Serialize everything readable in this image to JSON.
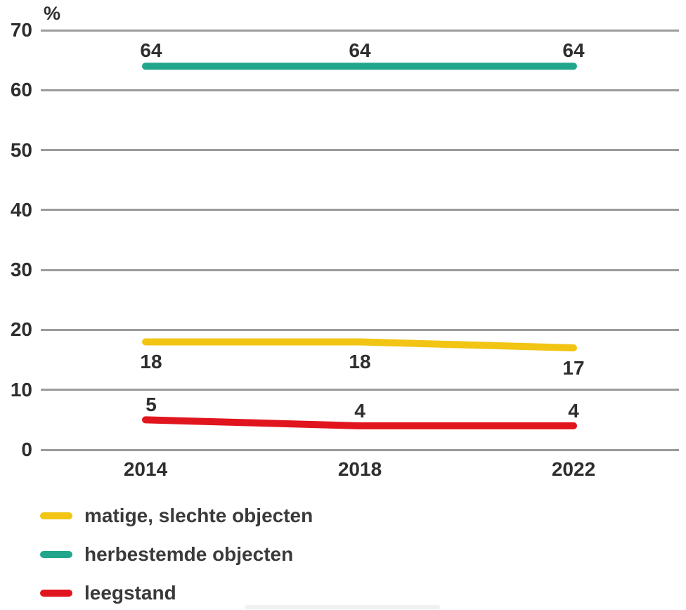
{
  "chart_data": {
    "type": "line",
    "title": "",
    "unit_label": "%",
    "categories": [
      "2014",
      "2018",
      "2022"
    ],
    "yticks": [
      70,
      60,
      50,
      40,
      30,
      20,
      10,
      0
    ],
    "ylim": [
      0,
      70
    ],
    "grid": true,
    "legend_position": "bottom-left",
    "series": [
      {
        "name": "matige, slechte objecten",
        "color": "#F2C413",
        "values": [
          18,
          18,
          17
        ],
        "value_labels": [
          "18",
          "18",
          "17"
        ],
        "value_label_position": "below"
      },
      {
        "name": "herbestemde objecten",
        "color": "#21A68B",
        "values": [
          64,
          64,
          64
        ],
        "value_labels": [
          "64",
          "64",
          "64"
        ],
        "value_label_position": "above"
      },
      {
        "name": "leegstand",
        "color": "#E1151D",
        "values": [
          5,
          4,
          4
        ],
        "value_labels": [
          "5",
          "4",
          "4"
        ],
        "value_label_position": "above"
      }
    ]
  },
  "colors": {
    "gridline": "#9B9B9B",
    "text": "#2E2E2E",
    "background": "#FFFFFF"
  }
}
